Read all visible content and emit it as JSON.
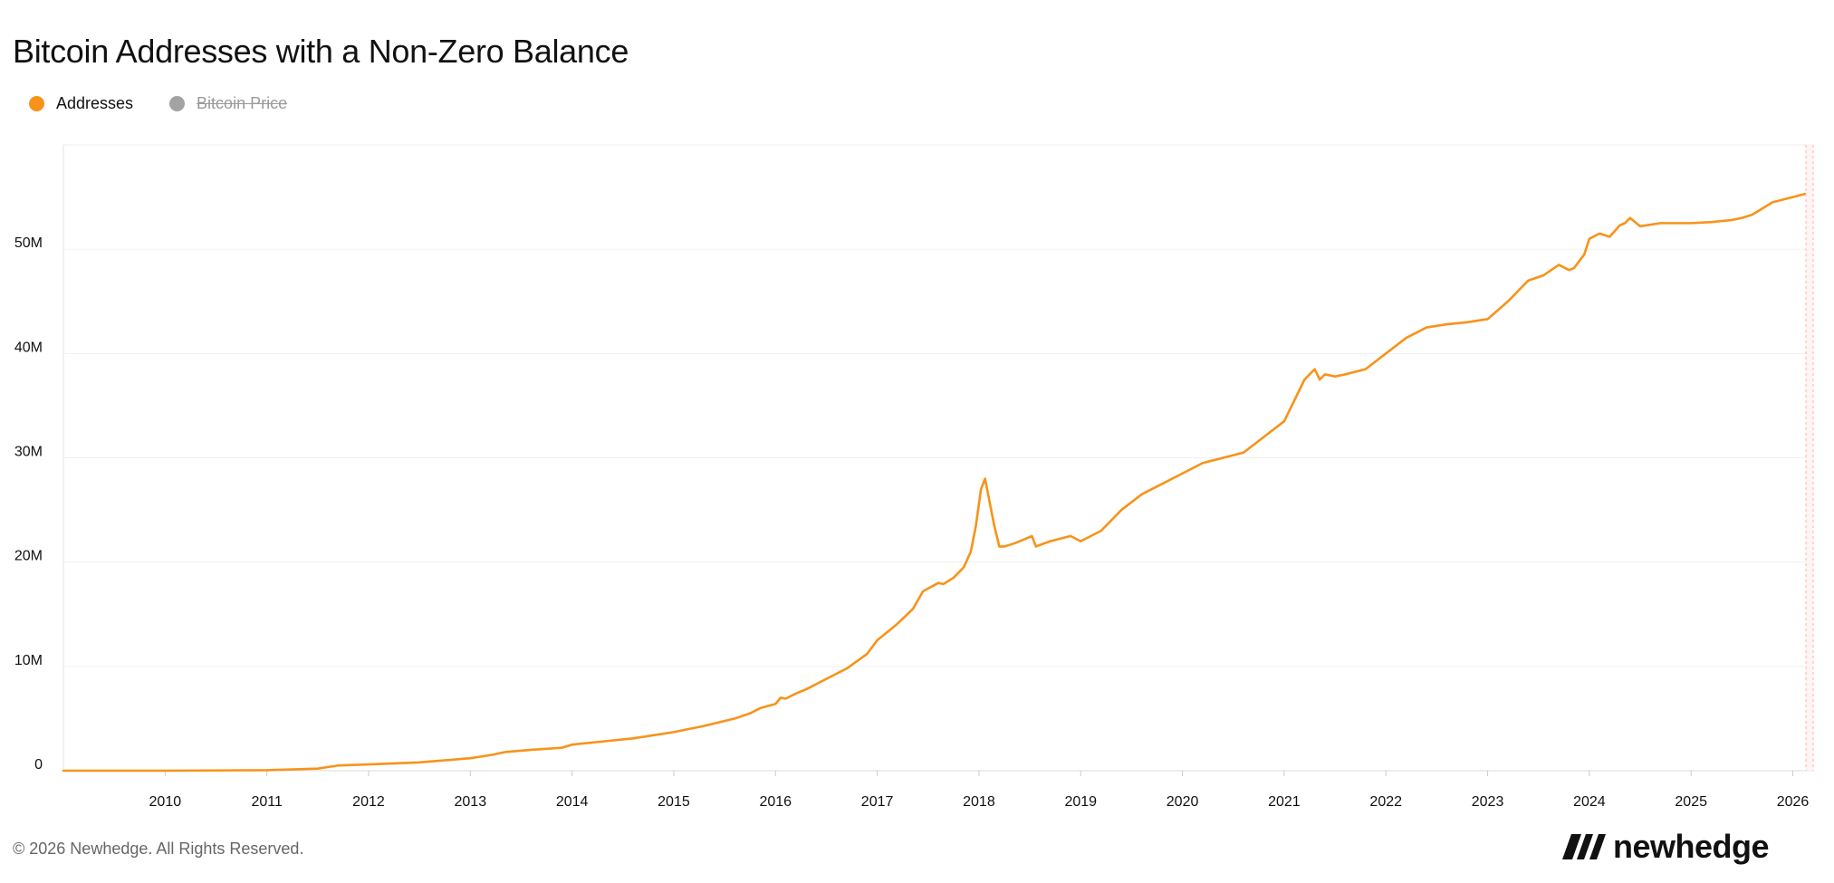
{
  "page": {
    "title": "Bitcoin Addresses with a Non-Zero Balance",
    "footer": "© 2026 Newhedge. All Rights Reserved.",
    "brand": "newhedge"
  },
  "legend": [
    {
      "label": "Addresses",
      "color": "#f7931a",
      "visible": true
    },
    {
      "label": "Bitcoin Price",
      "color": "#a3a3a3",
      "visible": false
    }
  ],
  "chart_data": {
    "type": "line",
    "title": "Bitcoin Addresses with a Non-Zero Balance",
    "xlabel": "",
    "ylabel": "",
    "xlim": [
      2009.0,
      2026.2
    ],
    "ylim": [
      0,
      60000000
    ],
    "x_ticks": [
      "2010",
      "2011",
      "2012",
      "2013",
      "2014",
      "2015",
      "2016",
      "2017",
      "2018",
      "2019",
      "2020",
      "2021",
      "2022",
      "2023",
      "2024",
      "2025",
      "2026"
    ],
    "y_ticks": [
      {
        "value": 0,
        "label": "0"
      },
      {
        "value": 10000000,
        "label": "10M"
      },
      {
        "value": 20000000,
        "label": "20M"
      },
      {
        "value": 30000000,
        "label": "30M"
      },
      {
        "value": 40000000,
        "label": "40M"
      },
      {
        "value": 50000000,
        "label": "50M"
      }
    ],
    "grid": true,
    "legend_position": "top-left",
    "series": [
      {
        "name": "Addresses",
        "color": "#f7931a",
        "x": [
          2009.0,
          2010.0,
          2011.0,
          2011.5,
          2011.7,
          2012.0,
          2012.5,
          2013.0,
          2013.2,
          2013.35,
          2013.6,
          2013.9,
          2014.0,
          2014.3,
          2014.6,
          2015.0,
          2015.3,
          2015.6,
          2015.75,
          2015.85,
          2016.0,
          2016.05,
          2016.1,
          2016.2,
          2016.3,
          2016.5,
          2016.7,
          2016.9,
          2017.0,
          2017.2,
          2017.35,
          2017.45,
          2017.6,
          2017.65,
          2017.75,
          2017.85,
          2017.92,
          2017.97,
          2018.02,
          2018.06,
          2018.1,
          2018.15,
          2018.2,
          2018.25,
          2018.35,
          2018.45,
          2018.52,
          2018.56,
          2018.7,
          2018.9,
          2019.0,
          2019.2,
          2019.4,
          2019.6,
          2019.8,
          2020.0,
          2020.2,
          2020.4,
          2020.6,
          2020.8,
          2021.0,
          2021.1,
          2021.2,
          2021.3,
          2021.35,
          2021.4,
          2021.5,
          2021.6,
          2021.8,
          2022.0,
          2022.2,
          2022.4,
          2022.6,
          2022.8,
          2023.0,
          2023.2,
          2023.4,
          2023.55,
          2023.7,
          2023.8,
          2023.85,
          2023.95,
          2024.0,
          2024.1,
          2024.2,
          2024.3,
          2024.35,
          2024.4,
          2024.5,
          2024.7,
          2024.9,
          2025.0,
          2025.2,
          2025.4,
          2025.5,
          2025.6,
          2025.8,
          2026.0,
          2026.12
        ],
        "values": [
          0,
          0,
          50000,
          200000,
          500000,
          600000,
          800000,
          1200000,
          1500000,
          1800000,
          2000000,
          2200000,
          2500000,
          2800000,
          3100000,
          3700000,
          4300000,
          5000000,
          5500000,
          6000000,
          6400000,
          7000000,
          6900000,
          7400000,
          7800000,
          8800000,
          9800000,
          11200000,
          12500000,
          14100000,
          15500000,
          17200000,
          18000000,
          17900000,
          18500000,
          19500000,
          21000000,
          23500000,
          27000000,
          28000000,
          26000000,
          23500000,
          21500000,
          21500000,
          21800000,
          22200000,
          22500000,
          21500000,
          22000000,
          22500000,
          22000000,
          23000000,
          25000000,
          26500000,
          27500000,
          28500000,
          29500000,
          30000000,
          30500000,
          32000000,
          33500000,
          35500000,
          37500000,
          38500000,
          37500000,
          38000000,
          37800000,
          38000000,
          38500000,
          40000000,
          41500000,
          42500000,
          42800000,
          43000000,
          43300000,
          45000000,
          47000000,
          47500000,
          48500000,
          48000000,
          48200000,
          49500000,
          51000000,
          51500000,
          51200000,
          52300000,
          52500000,
          53000000,
          52200000,
          52500000,
          52500000,
          52500000,
          52600000,
          52800000,
          53000000,
          53300000,
          54500000,
          55000000,
          55300000
        ]
      }
    ]
  }
}
